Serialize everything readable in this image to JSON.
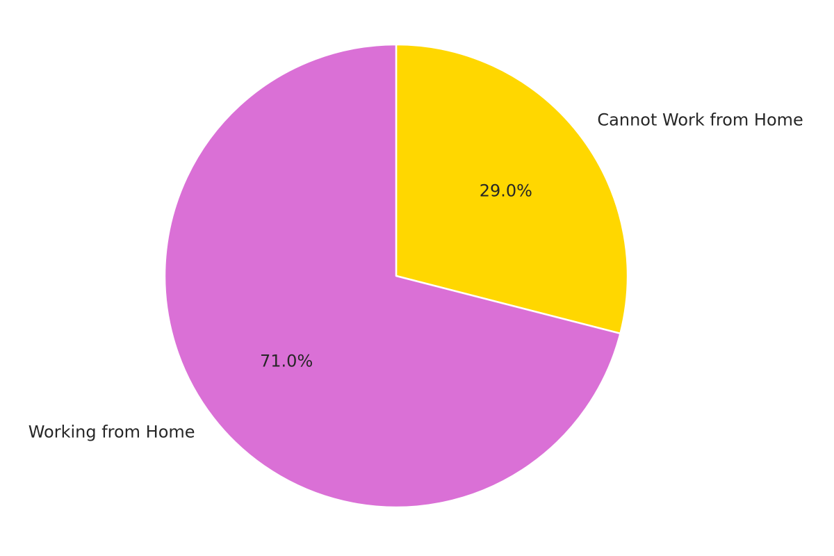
{
  "chart_data": {
    "type": "pie",
    "title": "",
    "slices": [
      {
        "label": "Cannot Work from Home",
        "value": 29.0,
        "percent_label": "29.0%",
        "color": "#FFD700"
      },
      {
        "label": "Working from Home",
        "value": 71.0,
        "percent_label": "71.0%",
        "color": "#DA70D6"
      }
    ],
    "start_angle_deg": 90,
    "direction": "clockwise",
    "legend": "none"
  }
}
